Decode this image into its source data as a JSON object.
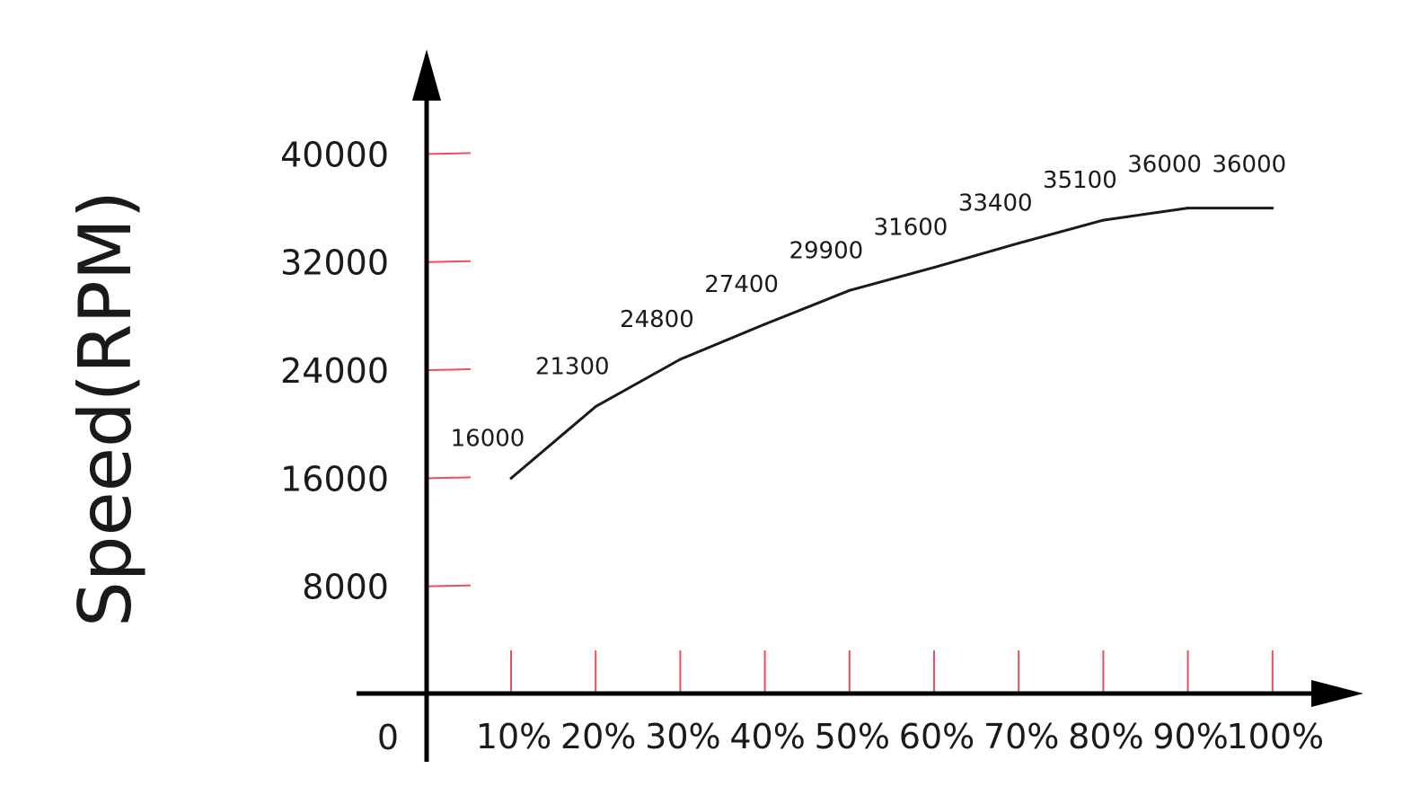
{
  "chart_data": {
    "type": "line",
    "title": "",
    "xlabel": "",
    "ylabel": "Speed(RPM)",
    "origin_label": "0",
    "categories": [
      "10%",
      "20%",
      "30%",
      "40%",
      "50%",
      "60%",
      "70%",
      "80%",
      "90%",
      "100%"
    ],
    "series": [
      {
        "values": [
          16000,
          21300,
          24800,
          27400,
          29900,
          31600,
          33400,
          35100,
          36000,
          36000
        ]
      }
    ],
    "data_labels": [
      "16000",
      "21300",
      "24800",
      "27400",
      "29900",
      "31600",
      "33400",
      "35100",
      "36000",
      "36000"
    ],
    "yticks": [
      8000,
      16000,
      24000,
      32000,
      40000
    ],
    "ytick_labels": [
      "8000",
      "16000",
      "24000",
      "32000",
      "40000"
    ],
    "ylim": [
      0,
      40000
    ],
    "grid": false,
    "colors": {
      "line": "#1a1a1a",
      "axis": "#000000",
      "ticks": "#e8505b"
    }
  }
}
